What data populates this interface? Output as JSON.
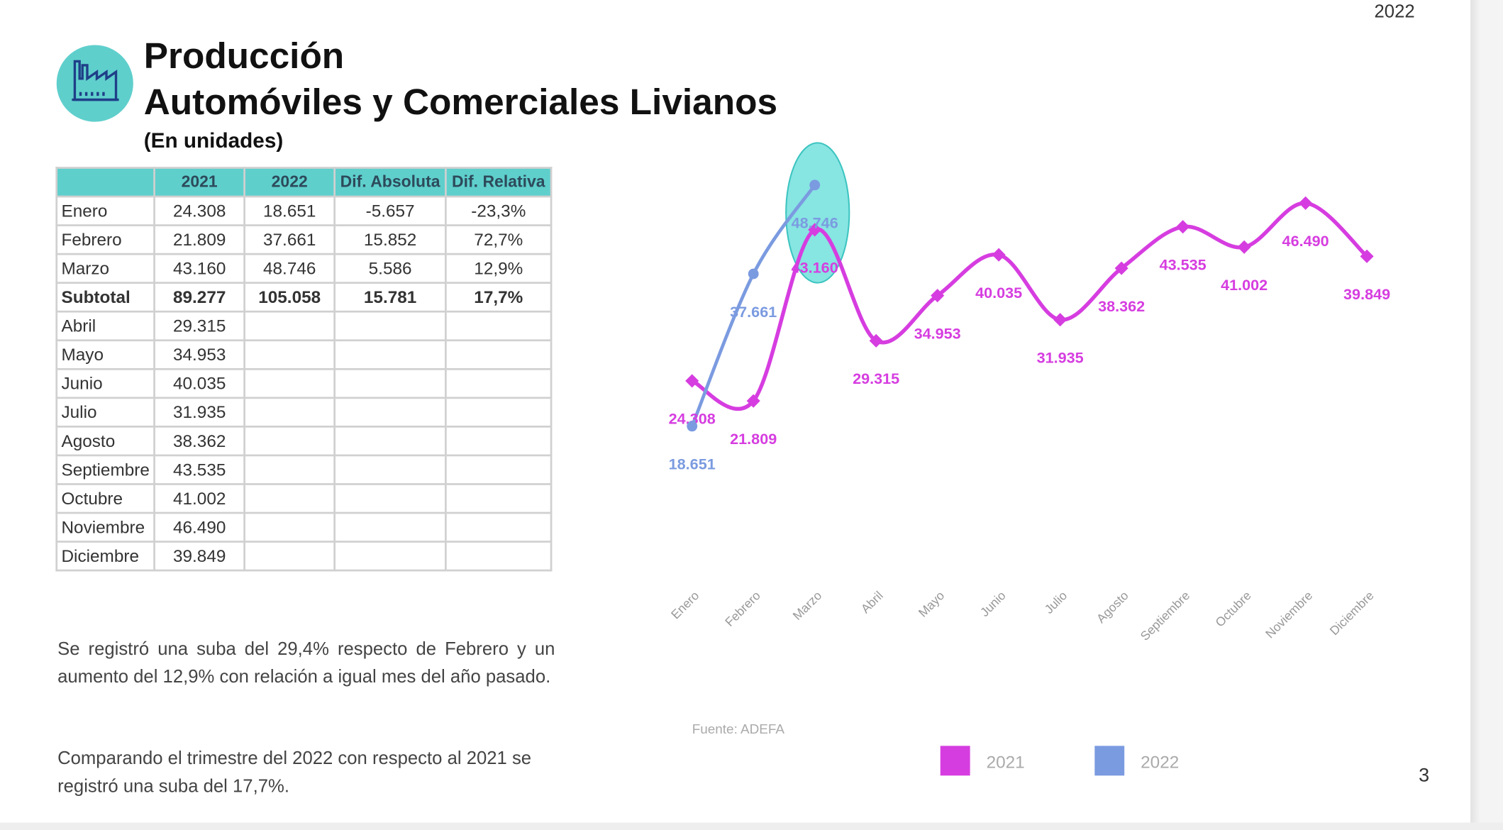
{
  "header": {
    "year": "2022",
    "title_line1": "Producción",
    "title_line2": "Automóviles y Comerciales Livianos",
    "subtitle": "(En unidades)"
  },
  "table": {
    "columns": [
      "2021",
      "2022",
      "Dif. Absoluta",
      "Dif. Relativa"
    ],
    "rows": [
      [
        "Enero",
        "24.308",
        "18.651",
        "-5.657",
        "-23,3%"
      ],
      [
        "Febrero",
        "21.809",
        "37.661",
        "15.852",
        "72,7%"
      ],
      [
        "Marzo",
        "43.160",
        "48.746",
        "5.586",
        "12,9%"
      ],
      [
        "Subtotal",
        "89.277",
        "105.058",
        "15.781",
        "17,7%"
      ],
      [
        "Abril",
        "29.315"
      ],
      [
        "Mayo",
        "34.953"
      ],
      [
        "Junio",
        "40.035"
      ],
      [
        "Julio",
        "31.935"
      ],
      [
        "Agosto",
        "38.362"
      ],
      [
        "Septiembre",
        "43.535"
      ],
      [
        "Octubre",
        "41.002"
      ],
      [
        "Noviembre",
        "46.490"
      ],
      [
        "Diciembre",
        "39.849"
      ]
    ]
  },
  "notes": [
    "Se registró una suba del 29,4% respecto de Febrero y un aumento del 12,9% con relación a igual mes del año pasado.",
    "Comparando el trimestre del 2022 con respecto al 2021 se registró una suba del 17,7%."
  ],
  "page_number": "3",
  "chart_data": {
    "type": "line",
    "source": "Fuente: ADEFA",
    "categories": [
      "Enero",
      "Febrero",
      "Marzo",
      "Abril",
      "Mayo",
      "Junio",
      "Julio",
      "Agosto",
      "Septiembre",
      "Octubre",
      "Noviembre",
      "Diciembre"
    ],
    "series": [
      {
        "name": "2021",
        "color": "#d63de0",
        "values": [
          24308,
          21809,
          43160,
          29315,
          34953,
          40035,
          31935,
          38362,
          43535,
          41002,
          46490,
          39849
        ],
        "value_labels": [
          "24.308",
          "21.809",
          "43.160",
          "29.315",
          "34.953",
          "40.035",
          "31.935",
          "38.362",
          "43.535",
          "41.002",
          "46.490",
          "39.849"
        ]
      },
      {
        "name": "2022",
        "color": "#7b9be0",
        "values": [
          18651,
          37661,
          48746,
          null,
          null,
          null,
          null,
          null,
          null,
          null,
          null,
          null
        ],
        "value_labels": [
          "18.651",
          "37.661",
          "48.746",
          null,
          null,
          null,
          null,
          null,
          null,
          null,
          null,
          null
        ]
      }
    ],
    "legend": "bottom"
  }
}
